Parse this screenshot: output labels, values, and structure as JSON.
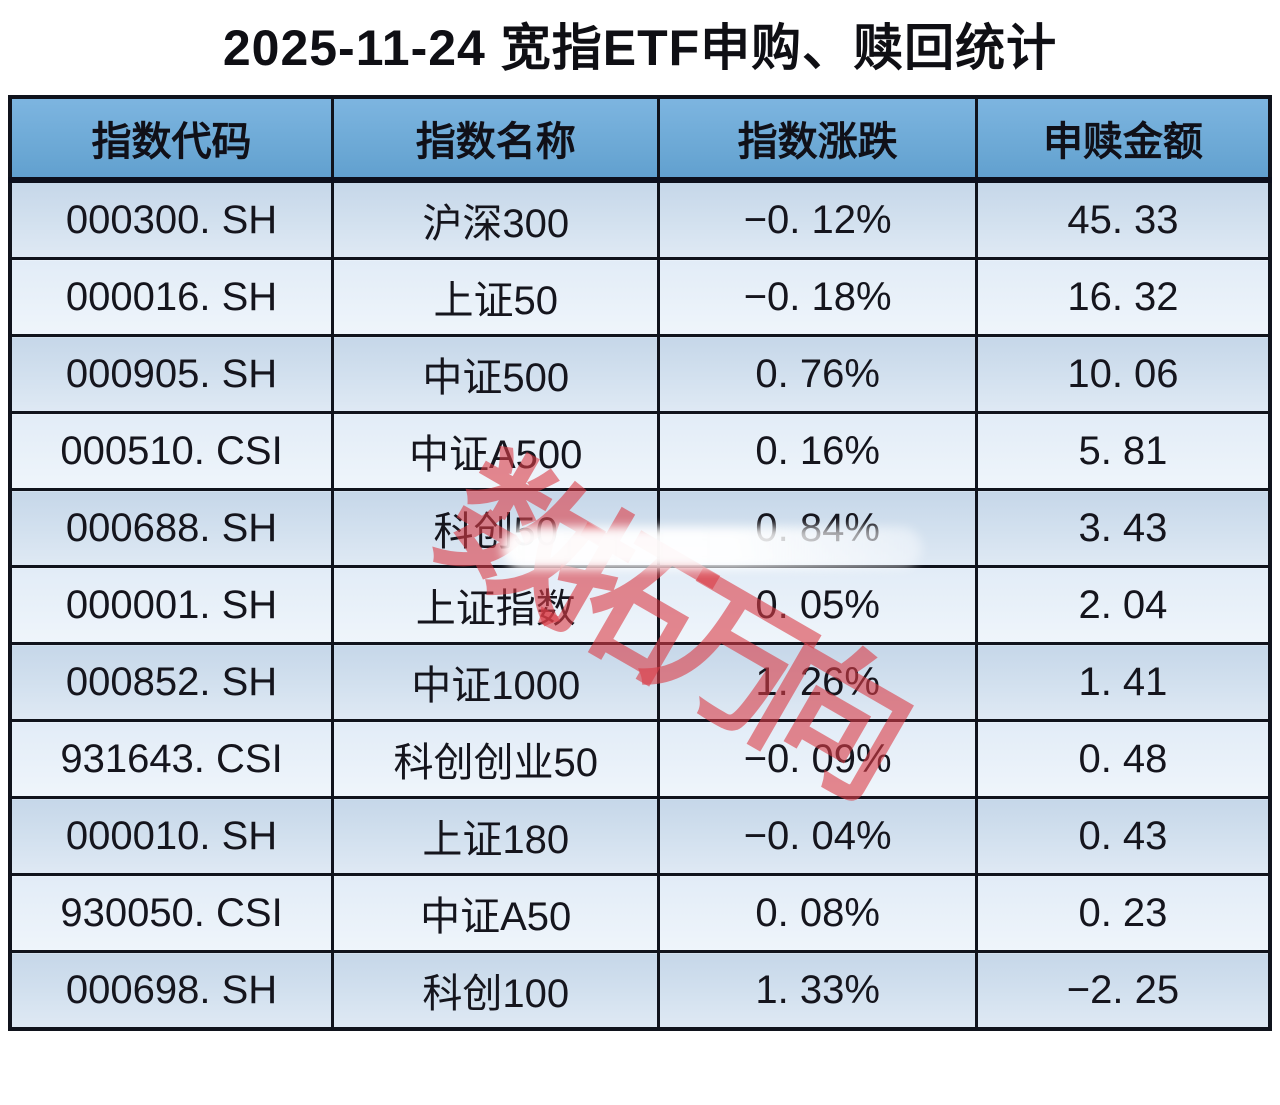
{
  "title": "2025-11-24 宽指ETF申购、赎回统计",
  "watermark": {
    "text": "数拓万向"
  },
  "colors": {
    "header_bg": "#6FAAD6",
    "row_dark": "#CCDCEC",
    "row_light": "#E9F1F9",
    "border": "#10131C",
    "text": "#14141C",
    "watermark_red": "#DB3C46"
  },
  "table": {
    "headers": [
      "指数代码",
      "指数名称",
      "指数涨跌",
      "申赎金额"
    ],
    "rows": [
      [
        "000300. SH",
        "沪深300",
        "−0. 12%",
        "45. 33"
      ],
      [
        "000016. SH",
        "上证50",
        "−0. 18%",
        "16. 32"
      ],
      [
        "000905. SH",
        "中证500",
        "0. 76%",
        "10. 06"
      ],
      [
        "000510. CSI",
        "中证A500",
        "0. 16%",
        "5. 81"
      ],
      [
        "000688. SH",
        "科创50",
        "0. 84%",
        "3. 43"
      ],
      [
        "000001. SH",
        "上证指数",
        "0. 05%",
        "2. 04"
      ],
      [
        "000852. SH",
        "中证1000",
        "1. 26%",
        "1. 41"
      ],
      [
        "931643. CSI",
        "科创创业50",
        "−0. 09%",
        "0. 48"
      ],
      [
        "000010. SH",
        "上证180",
        "−0. 04%",
        "0. 43"
      ],
      [
        "930050. CSI",
        "中证A50",
        "0. 08%",
        "0. 23"
      ],
      [
        "000698. SH",
        "科创100",
        "1. 33%",
        "−2. 25"
      ]
    ]
  },
  "chart_data": {
    "type": "table",
    "title": "2025-11-24 宽指ETF申购、赎回统计",
    "columns": [
      "指数代码",
      "指数名称",
      "指数涨跌",
      "申赎金额"
    ],
    "rows": [
      {
        "指数代码": "000300.SH",
        "指数名称": "沪深300",
        "指数涨跌_pct": -0.12,
        "申赎金额": 45.33
      },
      {
        "指数代码": "000016.SH",
        "指数名称": "上证50",
        "指数涨跌_pct": -0.18,
        "申赎金额": 16.32
      },
      {
        "指数代码": "000905.SH",
        "指数名称": "中证500",
        "指数涨跌_pct": 0.76,
        "申赎金额": 10.06
      },
      {
        "指数代码": "000510.CSI",
        "指数名称": "中证A500",
        "指数涨跌_pct": 0.16,
        "申赎金额": 5.81
      },
      {
        "指数代码": "000688.SH",
        "指数名称": "科创50",
        "指数涨跌_pct": 0.84,
        "申赎金额": 3.43
      },
      {
        "指数代码": "000001.SH",
        "指数名称": "上证指数",
        "指数涨跌_pct": 0.05,
        "申赎金额": 2.04
      },
      {
        "指数代码": "000852.SH",
        "指数名称": "中证1000",
        "指数涨跌_pct": 1.26,
        "申赎金额": 1.41
      },
      {
        "指数代码": "931643.CSI",
        "指数名称": "科创创业50",
        "指数涨跌_pct": -0.09,
        "申赎金额": 0.48
      },
      {
        "指数代码": "000010.SH",
        "指数名称": "上证180",
        "指数涨跌_pct": -0.04,
        "申赎金额": 0.43
      },
      {
        "指数代码": "930050.CSI",
        "指数名称": "中证A50",
        "指数涨跌_pct": 0.08,
        "申赎金额": 0.23
      },
      {
        "指数代码": "000698.SH",
        "指数名称": "科创100",
        "指数涨跌_pct": 1.33,
        "申赎金额": -2.25
      }
    ]
  }
}
